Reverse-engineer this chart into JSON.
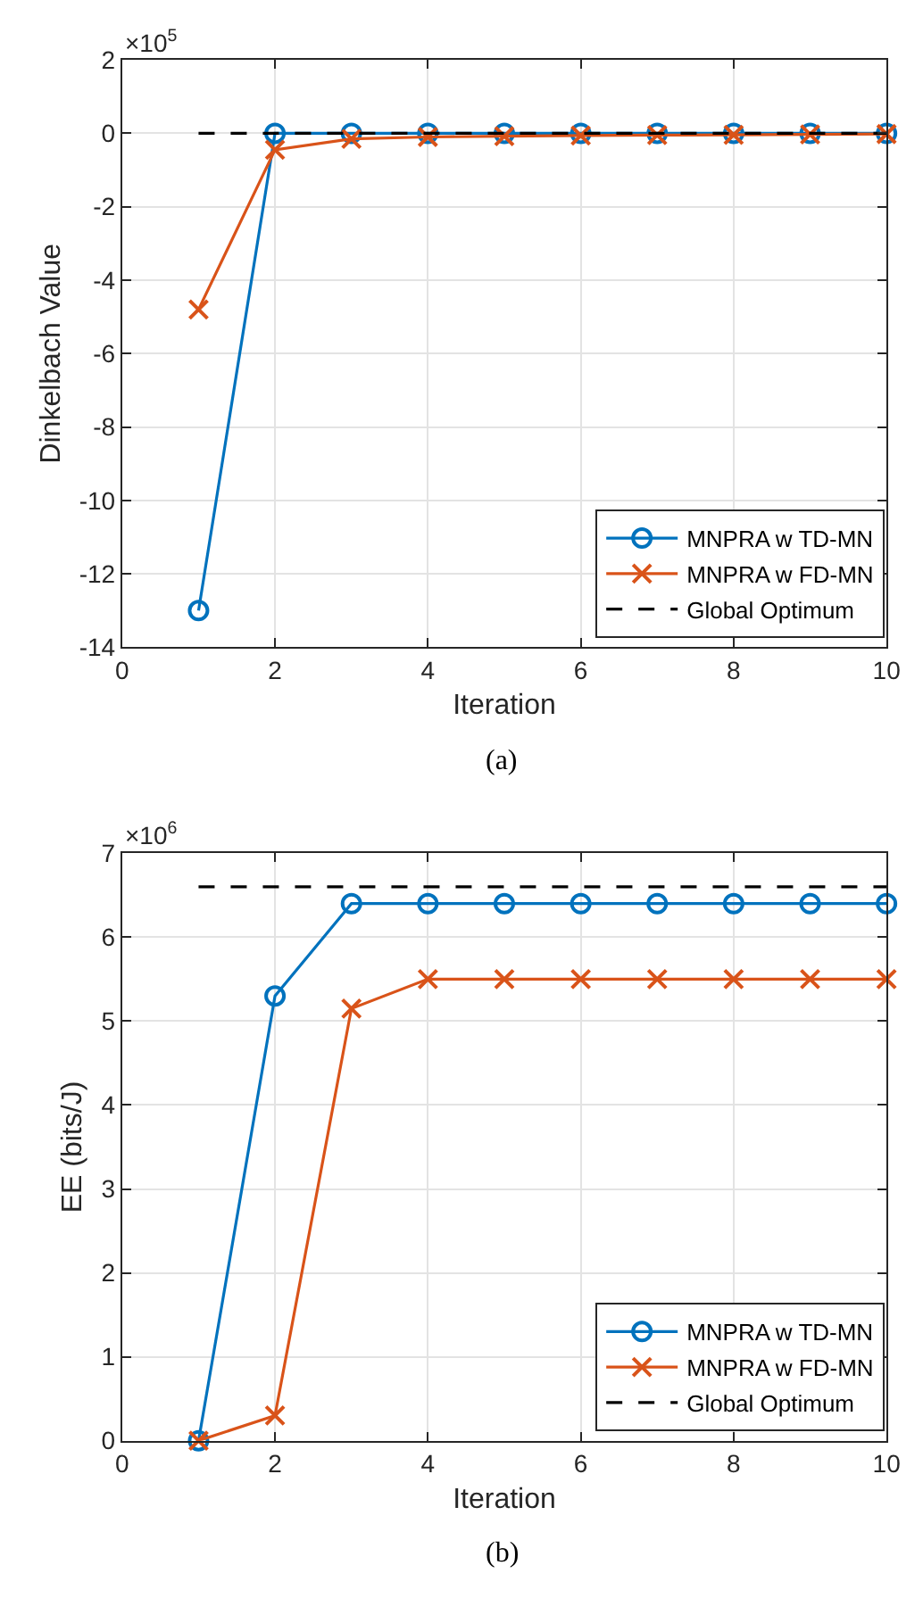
{
  "chart_data": [
    {
      "type": "line",
      "xlabel": "Iteration",
      "ylabel": "Dinkelbach Value",
      "x": [
        1,
        2,
        3,
        4,
        5,
        6,
        7,
        8,
        9,
        10
      ],
      "xlim": [
        0,
        10
      ],
      "xticks": [
        0,
        2,
        4,
        6,
        8,
        10
      ],
      "ylim": [
        -14,
        2
      ],
      "yticks": [
        -14,
        -12,
        -10,
        -8,
        -6,
        -4,
        -2,
        0,
        2
      ],
      "grid": true,
      "legend": "bottom right",
      "annotations": [
        "×10$^{5}$",
        "(a)"
      ],
      "series": [
        {
          "name": "MNPRA w TD-MN",
          "color": "#0072bd",
          "marker": "circle",
          "line_style": "solid",
          "values": [
            -13,
            0,
            0,
            0,
            0,
            0,
            0,
            0,
            0,
            0
          ]
        },
        {
          "name": "MNPRA w FD-MN",
          "color": "#d95319",
          "marker": "cross",
          "line_style": "solid",
          "values": [
            -4.8,
            -0.45,
            -0.15,
            -0.1,
            -0.08,
            -0.06,
            -0.05,
            -0.04,
            -0.03,
            -0.02
          ]
        },
        {
          "name": "Global Optimum",
          "color": "#000000",
          "marker": "none",
          "line_style": "dashed",
          "values": [
            0,
            0,
            0,
            0,
            0,
            0,
            0,
            0,
            0,
            0
          ]
        }
      ]
    },
    {
      "type": "line",
      "xlabel": "Iteration",
      "ylabel": "EE (bits/J)",
      "x": [
        1,
        2,
        3,
        4,
        5,
        6,
        7,
        8,
        9,
        10
      ],
      "xlim": [
        0,
        10
      ],
      "xticks": [
        0,
        2,
        4,
        6,
        8,
        10
      ],
      "ylim": [
        0,
        7
      ],
      "yticks": [
        0,
        1,
        2,
        3,
        4,
        5,
        6,
        7
      ],
      "grid": true,
      "legend": "bottom right",
      "annotations": [
        "×10$^{6}$",
        "(b)"
      ],
      "series": [
        {
          "name": "MNPRA w TD-MN",
          "color": "#0072bd",
          "marker": "circle",
          "line_style": "solid",
          "values": [
            0,
            5.3,
            6.4,
            6.4,
            6.4,
            6.4,
            6.4,
            6.4,
            6.4,
            6.4
          ]
        },
        {
          "name": "MNPRA w FD-MN",
          "color": "#d95319",
          "marker": "cross",
          "line_style": "solid",
          "values": [
            0,
            0.3,
            5.15,
            5.5,
            5.5,
            5.5,
            5.5,
            5.5,
            5.5,
            5.5
          ]
        },
        {
          "name": "Global Optimum",
          "color": "#000000",
          "marker": "none",
          "line_style": "dashed",
          "values": [
            6.6,
            6.6,
            6.6,
            6.6,
            6.6,
            6.6,
            6.6,
            6.6,
            6.6,
            6.6
          ]
        }
      ]
    }
  ]
}
